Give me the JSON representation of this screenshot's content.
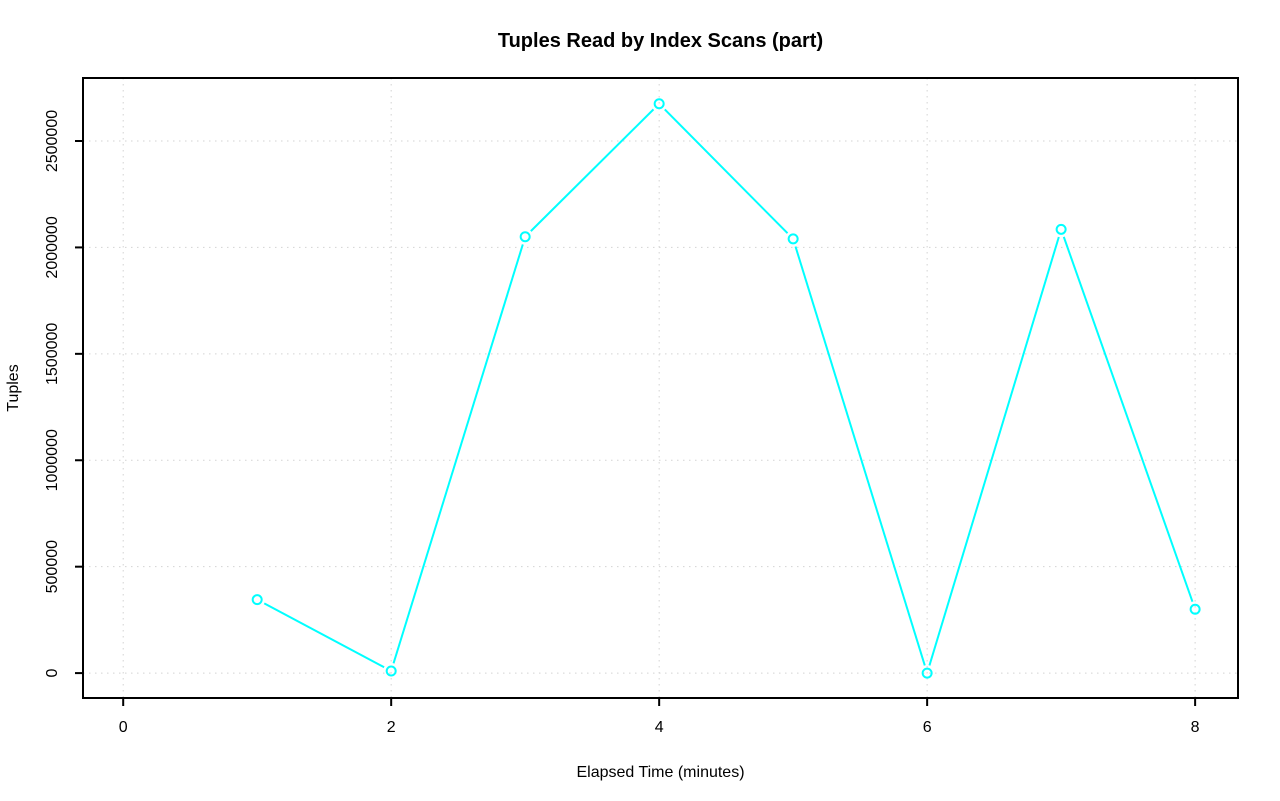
{
  "chart_data": {
    "type": "line",
    "title": "Tuples Read by Index Scans (part)",
    "xlabel": "Elapsed Time (minutes)",
    "ylabel": "Tuples",
    "x": [
      1,
      2,
      3,
      4,
      5,
      6,
      7,
      8
    ],
    "series": [
      {
        "name": "part",
        "values": [
          345000,
          10000,
          2050000,
          2675000,
          2040000,
          0,
          2085000,
          300000
        ]
      }
    ],
    "xticks": [
      0,
      2,
      4,
      6,
      8
    ],
    "yticks": [
      0,
      500000,
      1000000,
      1500000,
      2000000,
      2500000
    ],
    "xlim": [
      -0.3,
      8.32
    ],
    "ylim": [
      -117000,
      2796000
    ],
    "grid": true,
    "grid_style": "dotted",
    "legend": "none",
    "line_color": "#00ffff",
    "marker": "open-circle",
    "grid_color": "#d3d3d3",
    "axis_color": "#000000",
    "background": "#ffffff"
  }
}
